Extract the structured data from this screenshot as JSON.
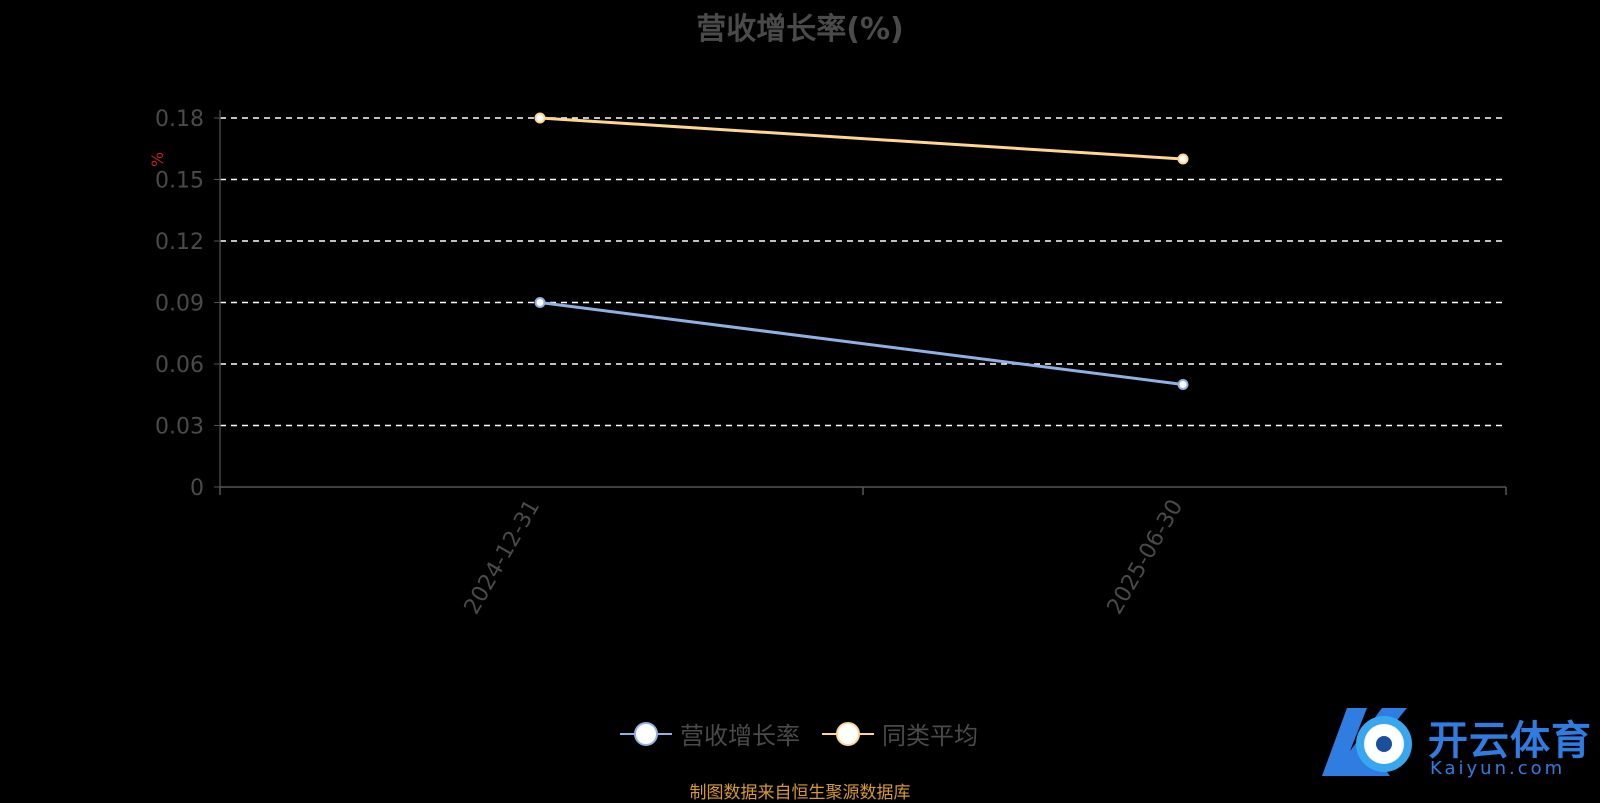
{
  "chart_data": {
    "type": "line",
    "title": "营收增长率(%)",
    "ylabel": "%",
    "x": [
      "2024-12-31",
      "2025-06-30"
    ],
    "y_ticks": [
      "0",
      "0.03",
      "0.06",
      "0.09",
      "0.12",
      "0.15",
      "0.18"
    ],
    "ylim": [
      0,
      0.18
    ],
    "grid": true,
    "legend_position": "bottom",
    "series": [
      {
        "name": "营收增长率",
        "values": [
          0.09,
          0.05
        ],
        "color": "#8fb0e0"
      },
      {
        "name": "同类平均",
        "values": [
          0.18,
          0.16
        ],
        "color": "#ffd58f"
      }
    ]
  },
  "source_note": "制图数据来自恒生聚源数据库",
  "logo": {
    "text": "开云体育",
    "sub": "Kaiyun.com"
  }
}
